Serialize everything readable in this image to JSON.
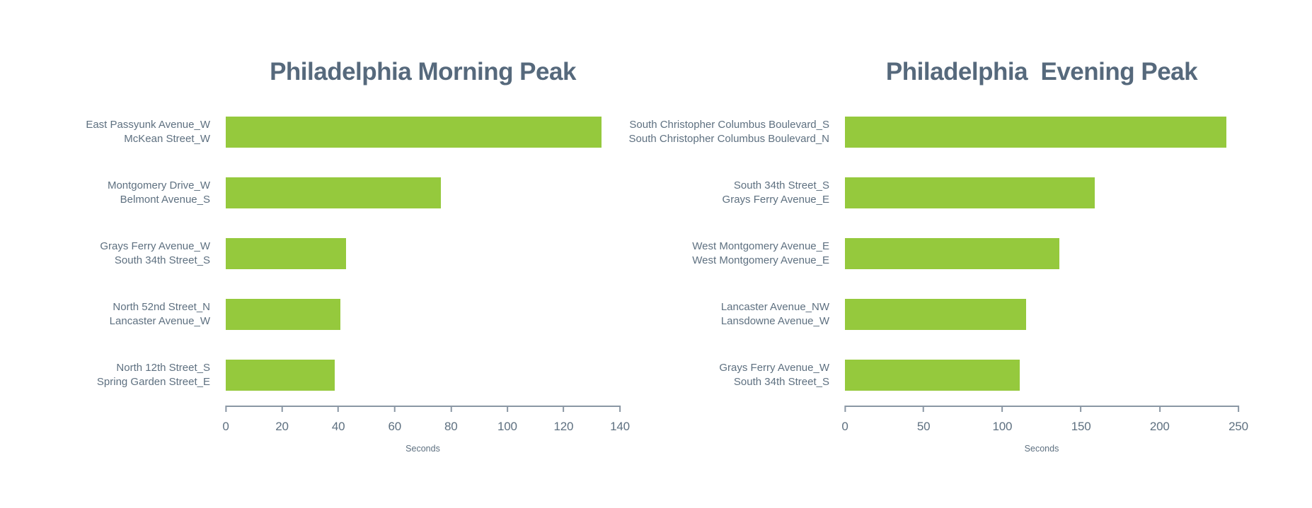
{
  "page": {
    "background": "#FFFFFF"
  },
  "chart_data": [
    {
      "type": "bar",
      "orientation": "horizontal",
      "title": "Philadelphia Morning Peak",
      "xlabel": "Seconds",
      "xlim": [
        0,
        140
      ],
      "xticks": [
        0,
        20,
        40,
        60,
        80,
        100,
        120,
        140
      ],
      "grid": false,
      "legend": false,
      "bar_color": "#95C93D",
      "title_color": "#56697C",
      "text_color": "#5E7080",
      "axis_color": "#8A97A4",
      "categories": [
        [
          "East Passyunk Avenue_W",
          "McKean Street_W"
        ],
        [
          "Montgomery Drive_W",
          "Belmont Avenue_S"
        ],
        [
          "Grays Ferry Avenue_W",
          "South 34th Street_S"
        ],
        [
          "North 52nd Street_N",
          "Lancaster Avenue_W"
        ],
        [
          "North 12th Street_S",
          "Spring Garden Street_E"
        ]
      ],
      "values": [
        131,
        75,
        42,
        40,
        38
      ]
    },
    {
      "type": "bar",
      "orientation": "horizontal",
      "title": "Philadelphia  Evening Peak",
      "xlabel": "Seconds",
      "xlim": [
        0,
        250
      ],
      "xticks": [
        0,
        50,
        100,
        150,
        200,
        250
      ],
      "grid": false,
      "legend": false,
      "bar_color": "#95C93D",
      "title_color": "#56697C",
      "text_color": "#5E7080",
      "axis_color": "#8A97A4",
      "categories": [
        [
          "South Christopher Columbus Boulevard_S",
          "South Christopher Columbus Boulevard_N"
        ],
        [
          "South 34th Street_S",
          "Grays Ferry Avenue_E"
        ],
        [
          "West Montgomery Avenue_E",
          "West Montgomery Avenue_E"
        ],
        [
          "Lancaster Avenue_NW",
          "Lansdowne Avenue_W"
        ],
        [
          "Grays Ferry Avenue_W",
          "South 34th Street_S"
        ]
      ],
      "values": [
        238,
        156,
        134,
        113,
        109
      ]
    }
  ]
}
